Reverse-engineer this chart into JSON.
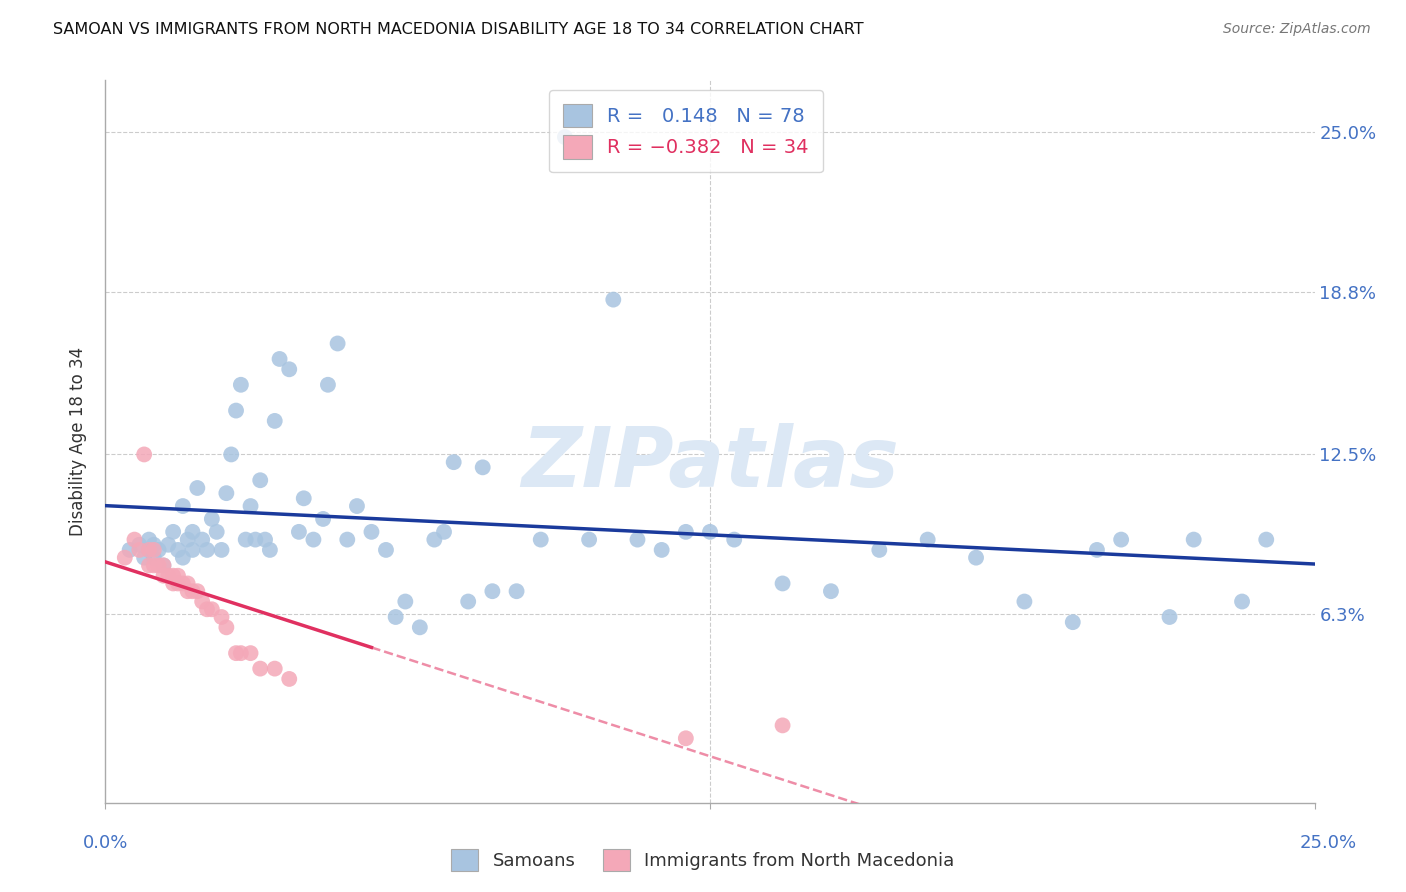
{
  "title": "SAMOAN VS IMMIGRANTS FROM NORTH MACEDONIA DISABILITY AGE 18 TO 34 CORRELATION CHART",
  "source": "Source: ZipAtlas.com",
  "ylabel": "Disability Age 18 to 34",
  "yticks": [
    "25.0%",
    "18.8%",
    "12.5%",
    "6.3%"
  ],
  "ytick_vals": [
    0.25,
    0.188,
    0.125,
    0.063
  ],
  "xlim": [
    0.0,
    0.25
  ],
  "ylim": [
    -0.01,
    0.27
  ],
  "blue_R": 0.148,
  "blue_N": 78,
  "pink_R": -0.382,
  "pink_N": 34,
  "blue_color": "#a8c4e0",
  "pink_color": "#f4a8b8",
  "blue_line_color": "#1a3a9c",
  "pink_line_color": "#e03060",
  "watermark_color": "#dce8f5",
  "legend_label_blue": "Samoans",
  "legend_label_pink": "Immigrants from North Macedonia",
  "blue_scatter_x": [
    0.005,
    0.007,
    0.008,
    0.009,
    0.009,
    0.01,
    0.01,
    0.011,
    0.012,
    0.013,
    0.014,
    0.015,
    0.016,
    0.016,
    0.017,
    0.018,
    0.018,
    0.019,
    0.02,
    0.021,
    0.022,
    0.023,
    0.024,
    0.025,
    0.026,
    0.027,
    0.028,
    0.029,
    0.03,
    0.031,
    0.032,
    0.033,
    0.034,
    0.035,
    0.036,
    0.038,
    0.04,
    0.041,
    0.043,
    0.045,
    0.046,
    0.048,
    0.05,
    0.052,
    0.055,
    0.058,
    0.06,
    0.062,
    0.065,
    0.068,
    0.07,
    0.072,
    0.075,
    0.078,
    0.08,
    0.085,
    0.09,
    0.095,
    0.1,
    0.105,
    0.11,
    0.115,
    0.12,
    0.125,
    0.13,
    0.14,
    0.15,
    0.16,
    0.17,
    0.18,
    0.19,
    0.2,
    0.205,
    0.21,
    0.22,
    0.225,
    0.235,
    0.24
  ],
  "blue_scatter_y": [
    0.088,
    0.09,
    0.085,
    0.088,
    0.092,
    0.085,
    0.09,
    0.088,
    0.082,
    0.09,
    0.095,
    0.088,
    0.105,
    0.085,
    0.092,
    0.088,
    0.095,
    0.112,
    0.092,
    0.088,
    0.1,
    0.095,
    0.088,
    0.11,
    0.125,
    0.142,
    0.152,
    0.092,
    0.105,
    0.092,
    0.115,
    0.092,
    0.088,
    0.138,
    0.162,
    0.158,
    0.095,
    0.108,
    0.092,
    0.1,
    0.152,
    0.168,
    0.092,
    0.105,
    0.095,
    0.088,
    0.062,
    0.068,
    0.058,
    0.092,
    0.095,
    0.122,
    0.068,
    0.12,
    0.072,
    0.072,
    0.092,
    0.248,
    0.092,
    0.185,
    0.092,
    0.088,
    0.095,
    0.095,
    0.092,
    0.075,
    0.072,
    0.088,
    0.092,
    0.085,
    0.068,
    0.06,
    0.088,
    0.092,
    0.062,
    0.092,
    0.068,
    0.092
  ],
  "pink_scatter_x": [
    0.004,
    0.006,
    0.007,
    0.008,
    0.009,
    0.009,
    0.01,
    0.01,
    0.011,
    0.012,
    0.012,
    0.013,
    0.014,
    0.014,
    0.015,
    0.015,
    0.016,
    0.017,
    0.017,
    0.018,
    0.019,
    0.02,
    0.021,
    0.022,
    0.024,
    0.025,
    0.027,
    0.028,
    0.03,
    0.032,
    0.035,
    0.038,
    0.12,
    0.14
  ],
  "pink_scatter_y": [
    0.085,
    0.092,
    0.088,
    0.125,
    0.088,
    0.082,
    0.088,
    0.082,
    0.082,
    0.082,
    0.078,
    0.078,
    0.078,
    0.075,
    0.078,
    0.075,
    0.075,
    0.075,
    0.072,
    0.072,
    0.072,
    0.068,
    0.065,
    0.065,
    0.062,
    0.058,
    0.048,
    0.048,
    0.048,
    0.042,
    0.042,
    0.038,
    0.015,
    0.02
  ]
}
